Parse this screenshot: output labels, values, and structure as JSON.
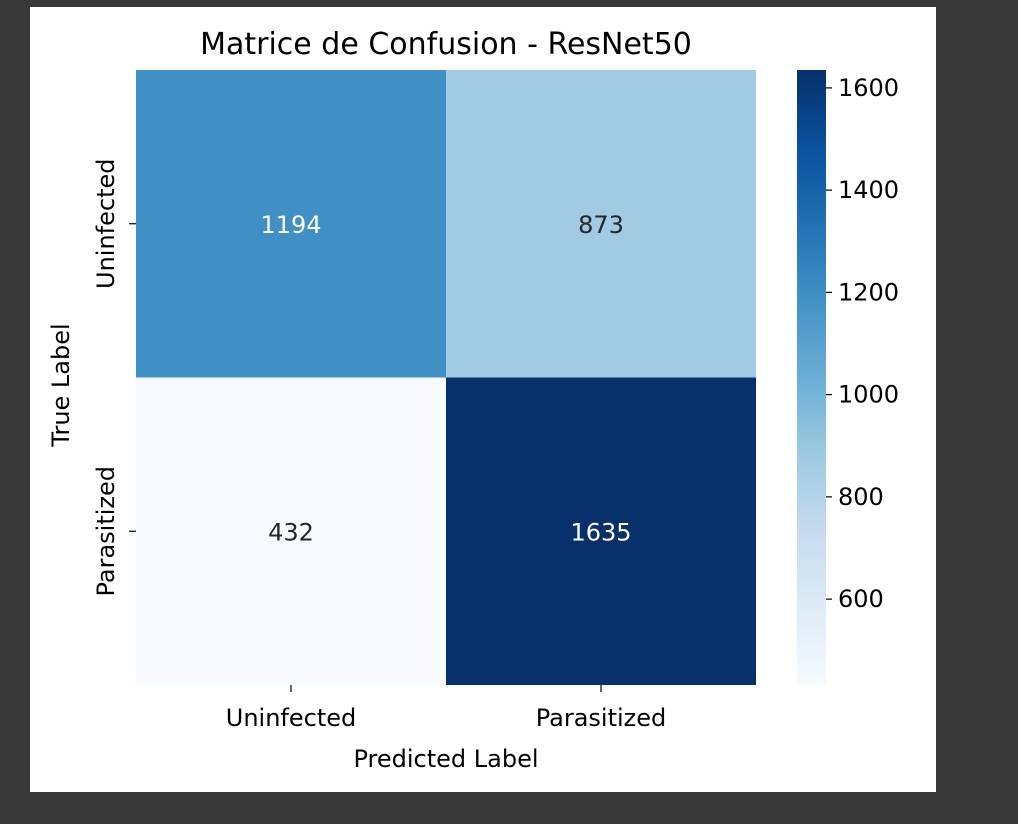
{
  "chart_data": {
    "type": "heatmap",
    "title": "Matrice de Confusion - ResNet50",
    "xlabel": "Predicted Label",
    "ylabel": "True Label",
    "x_categories": [
      "Uninfected",
      "Parasitized"
    ],
    "y_categories": [
      "Uninfected",
      "Parasitized"
    ],
    "values": [
      [
        1194,
        873
      ],
      [
        432,
        1635
      ]
    ],
    "colormap": "Blues",
    "colorbar": {
      "vmin": 432,
      "vmax": 1635,
      "ticks": [
        600,
        800,
        1000,
        1200,
        1400,
        1600
      ]
    },
    "grid": false,
    "colors": {
      "page_background": "#383838",
      "figure_background": "#ffffff",
      "cmap_low": "#f7fbff",
      "cmap_high": "#08306b"
    }
  }
}
